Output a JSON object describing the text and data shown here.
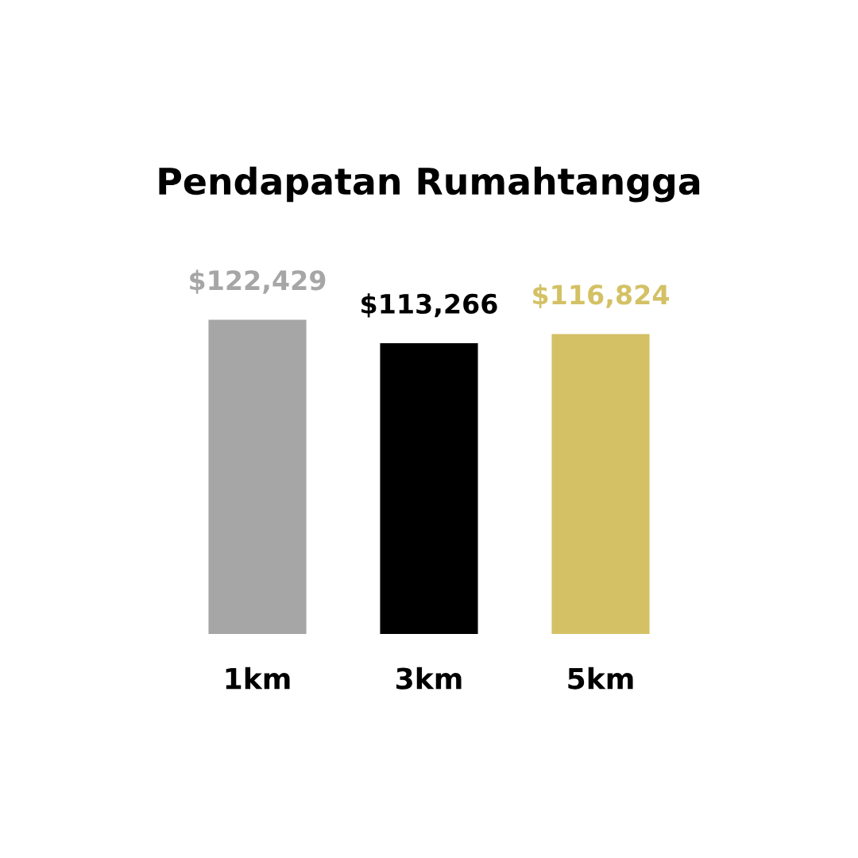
{
  "chart_data": {
    "type": "bar",
    "title": "Pendapatan Rumahtangga",
    "categories": [
      "1km",
      "3km",
      "5km"
    ],
    "values": [
      122429,
      113266,
      116824
    ],
    "colors": [
      "#a6a6a6",
      "#000000",
      "#d4c165"
    ],
    "value_labels": [
      "$122,429",
      "$113,266",
      "$116,824"
    ],
    "grid": false,
    "legend": false,
    "tick_labels": "x"
  }
}
